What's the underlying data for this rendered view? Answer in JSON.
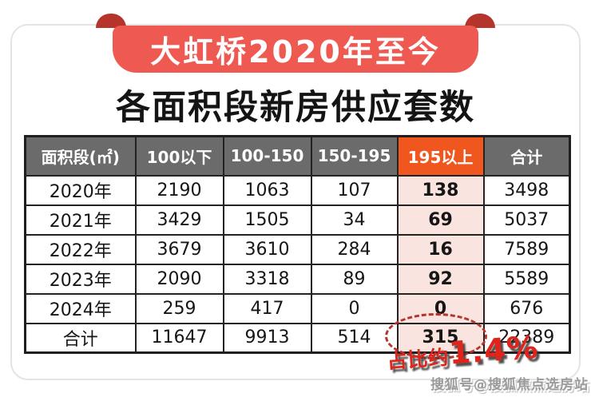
{
  "banner": {
    "title": "大虹桥2020年至今"
  },
  "subtitle": "各面积段新房供应套数",
  "annotation": {
    "prefix": "占比约",
    "value": "1.4%"
  },
  "watermark": "搜狐号@搜狐焦点选房站",
  "colors": {
    "ribbon_red": "#ee5a52",
    "ribbon_fold_dark_red": "#b5342c",
    "header_gray": "#6b6b6b",
    "highlight_orange": "#f0571f",
    "highlight_pink": "#fae4df",
    "annotation_red": "#e0241b",
    "table_border": "#1f1f1f"
  },
  "chart_data": {
    "type": "table",
    "title": "大虹桥2020年至今 各面积段新房供应套数",
    "columns": [
      "面积段(㎡)",
      "100以下",
      "100-150",
      "150-195",
      "195以上",
      "合计"
    ],
    "rows": [
      [
        "2020年",
        "2190",
        "1063",
        "107",
        "138",
        "3498"
      ],
      [
        "2021年",
        "3429",
        "1505",
        "34",
        "69",
        "5037"
      ],
      [
        "2022年",
        "3679",
        "3610",
        "284",
        "16",
        "7589"
      ],
      [
        "2023年",
        "2090",
        "3318",
        "89",
        "92",
        "5589"
      ],
      [
        "2024年",
        "259",
        "417",
        "0",
        "0",
        "676"
      ],
      [
        "合计",
        "11647",
        "9913",
        "514",
        "315",
        "22389"
      ]
    ],
    "highlighted_column_index": 4,
    "circled_cell": {
      "row": "合计",
      "column": "195以上",
      "value": "315"
    },
    "annotation": "占比约1.4%"
  }
}
